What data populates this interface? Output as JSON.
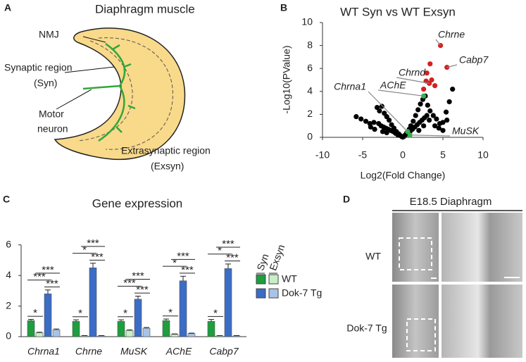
{
  "panel_a": {
    "letter": "A",
    "title": "Diaphragm muscle",
    "labels": [
      [
        "NMJ"
      ],
      [
        "Synaptic region",
        "(Syn)"
      ],
      [
        "Motor",
        "neuron"
      ],
      [
        "Extrasynaptic region",
        "(Exsyn)"
      ]
    ]
  },
  "chart_data": [
    {
      "type": "scatter",
      "panel": "B",
      "title": "WT Syn vs WT Exsyn",
      "x_label": "Log2(Fold Change)",
      "y_label": "-Log10(PValue)",
      "xlim": [
        -10,
        10
      ],
      "ylim": [
        0,
        10
      ],
      "xticks": [
        -10,
        -5,
        0,
        5,
        10
      ],
      "yticks": [
        0,
        2,
        4,
        6,
        8,
        10
      ],
      "series": [
        {
          "color": "#000000",
          "x": [
            -5.8,
            -5.2,
            -4.6,
            -4.1,
            -3.6,
            -3.2,
            -2.9,
            -2.6,
            -2.3,
            -2.0,
            -1.7,
            -1.4,
            -1.1,
            -0.8,
            -0.5,
            -0.3,
            -0.1,
            0.1,
            0.3,
            0.5,
            0.8,
            1.0,
            1.3,
            1.6,
            1.9,
            2.2,
            2.5,
            2.8,
            3.1,
            3.4,
            3.8,
            4.2,
            4.6,
            5.0,
            5.4,
            5.8,
            6.2,
            -3.0,
            -2.7,
            -2.4,
            -2.1,
            -1.8,
            -1.5,
            -1.2,
            -0.9,
            -0.6,
            0.6,
            0.9,
            1.2,
            1.5,
            1.8,
            2.1,
            2.4,
            2.7,
            3.0,
            3.3,
            -4.0,
            -3.5,
            4.0,
            4.5,
            5.0,
            5.5,
            -2.5,
            -2.0,
            2.0,
            2.6
          ],
          "values": [
            1.8,
            1.6,
            1.4,
            1.2,
            1.3,
            2.6,
            2.3,
            2.7,
            2.1,
            1.8,
            1.5,
            1.1,
            0.8,
            0.5,
            0.3,
            0.15,
            0.05,
            0.05,
            0.2,
            0.4,
            0.7,
            1.0,
            1.4,
            1.9,
            2.4,
            2.9,
            3.3,
            3.6,
            2.8,
            2.3,
            1.9,
            1.6,
            1.2,
            1.3,
            2.2,
            3.1,
            4.2,
            1.2,
            1.0,
            0.9,
            0.8,
            0.7,
            0.6,
            0.5,
            0.35,
            0.2,
            0.3,
            0.5,
            0.7,
            0.9,
            1.1,
            1.3,
            1.5,
            1.7,
            1.9,
            1.5,
            0.9,
            0.7,
            1.0,
            0.8,
            0.6,
            1.5,
            0.5,
            0.4,
            0.6,
            1.0
          ]
        },
        {
          "color": "#d42020",
          "x": [
            4.7,
            5.5,
            3.4,
            3.0,
            2.9,
            3.3,
            3.6,
            2.6,
            4.0
          ],
          "values": [
            8.0,
            6.1,
            6.4,
            5.6,
            4.9,
            4.7,
            5.0,
            4.2,
            4.5
          ]
        },
        {
          "color": "#2db34a",
          "x": [
            2.6,
            0.6,
            0.9
          ],
          "values": [
            3.6,
            0.5,
            0.2
          ]
        }
      ],
      "annotations": [
        {
          "text": "Chrne",
          "series": 1,
          "point": 0
        },
        {
          "text": "Cabp7",
          "series": 1,
          "point": 1
        },
        {
          "text": "Chrnd",
          "series": 1,
          "point": 5
        },
        {
          "text": "AChE",
          "series": 2,
          "point": 0
        },
        {
          "text": "Chrna1",
          "series": 2,
          "point": 1
        },
        {
          "text": "MuSK",
          "series": 2,
          "point": 2
        }
      ]
    },
    {
      "type": "bar",
      "panel": "C",
      "title": "Gene expression",
      "categories": [
        "Chrna1",
        "Chrne",
        "MuSK",
        "AChE",
        "Cabp7"
      ],
      "ylim": [
        0,
        6.4
      ],
      "yticks": [
        0,
        2,
        4,
        6
      ],
      "series": [
        {
          "color": "#1e9e3e",
          "values": [
            1.05,
            1.0,
            1.0,
            1.05,
            1.0
          ],
          "errors": [
            0.08,
            0.1,
            0.1,
            0.1,
            0.12
          ]
        },
        {
          "color": "#c9efc6",
          "values": [
            0.25,
            0.05,
            0.4,
            0.15,
            0.05
          ],
          "errors": [
            0.04,
            0.02,
            0.05,
            0.03,
            0.02
          ]
        },
        {
          "color": "#3b6cc6",
          "values": [
            2.8,
            4.5,
            2.45,
            3.65,
            4.45
          ],
          "errors": [
            0.25,
            0.3,
            0.2,
            0.3,
            0.3
          ]
        },
        {
          "color": "#a8c3e8",
          "values": [
            0.45,
            0.05,
            0.55,
            0.2,
            0.05
          ],
          "errors": [
            0.05,
            0.02,
            0.05,
            0.03,
            0.02
          ]
        }
      ],
      "legend": {
        "columns": [
          "Syn",
          "Exsyn"
        ],
        "rows": [
          "WT",
          "Dok-7 Tg"
        ]
      },
      "comparisons": [
        [
          {
            "pair": [
              0,
              1
            ],
            "label": "*"
          },
          {
            "pair": [
              2,
              3
            ],
            "label": "***"
          },
          {
            "pair": [
              0,
              2
            ],
            "label": "***"
          },
          {
            "pair": [
              1,
              3
            ],
            "label": "***"
          }
        ],
        [
          {
            "pair": [
              0,
              1
            ],
            "label": "*"
          },
          {
            "pair": [
              2,
              3
            ],
            "label": "***"
          },
          {
            "pair": [
              0,
              2
            ],
            "label": "*"
          },
          {
            "pair": [
              1,
              3
            ],
            "label": "***"
          }
        ],
        [
          {
            "pair": [
              0,
              1
            ],
            "label": "*"
          },
          {
            "pair": [
              2,
              3
            ],
            "label": "***"
          },
          {
            "pair": [
              0,
              2
            ],
            "label": "***"
          },
          {
            "pair": [
              1,
              3
            ],
            "label": "***"
          }
        ],
        [
          {
            "pair": [
              0,
              1
            ],
            "label": "*"
          },
          {
            "pair": [
              2,
              3
            ],
            "label": "***"
          },
          {
            "pair": [
              0,
              2
            ],
            "label": "*"
          },
          {
            "pair": [
              1,
              3
            ],
            "label": "***"
          }
        ],
        [
          {
            "pair": [
              0,
              1
            ],
            "label": "*"
          },
          {
            "pair": [
              2,
              3
            ],
            "label": "***"
          },
          {
            "pair": [
              0,
              2
            ],
            "label": "*"
          },
          {
            "pair": [
              1,
              3
            ],
            "label": "***"
          }
        ]
      ]
    }
  ],
  "panel_d": {
    "letter": "D",
    "title": "E18.5 Diaphragm",
    "rows": [
      "WT",
      "Dok-7 Tg"
    ]
  }
}
